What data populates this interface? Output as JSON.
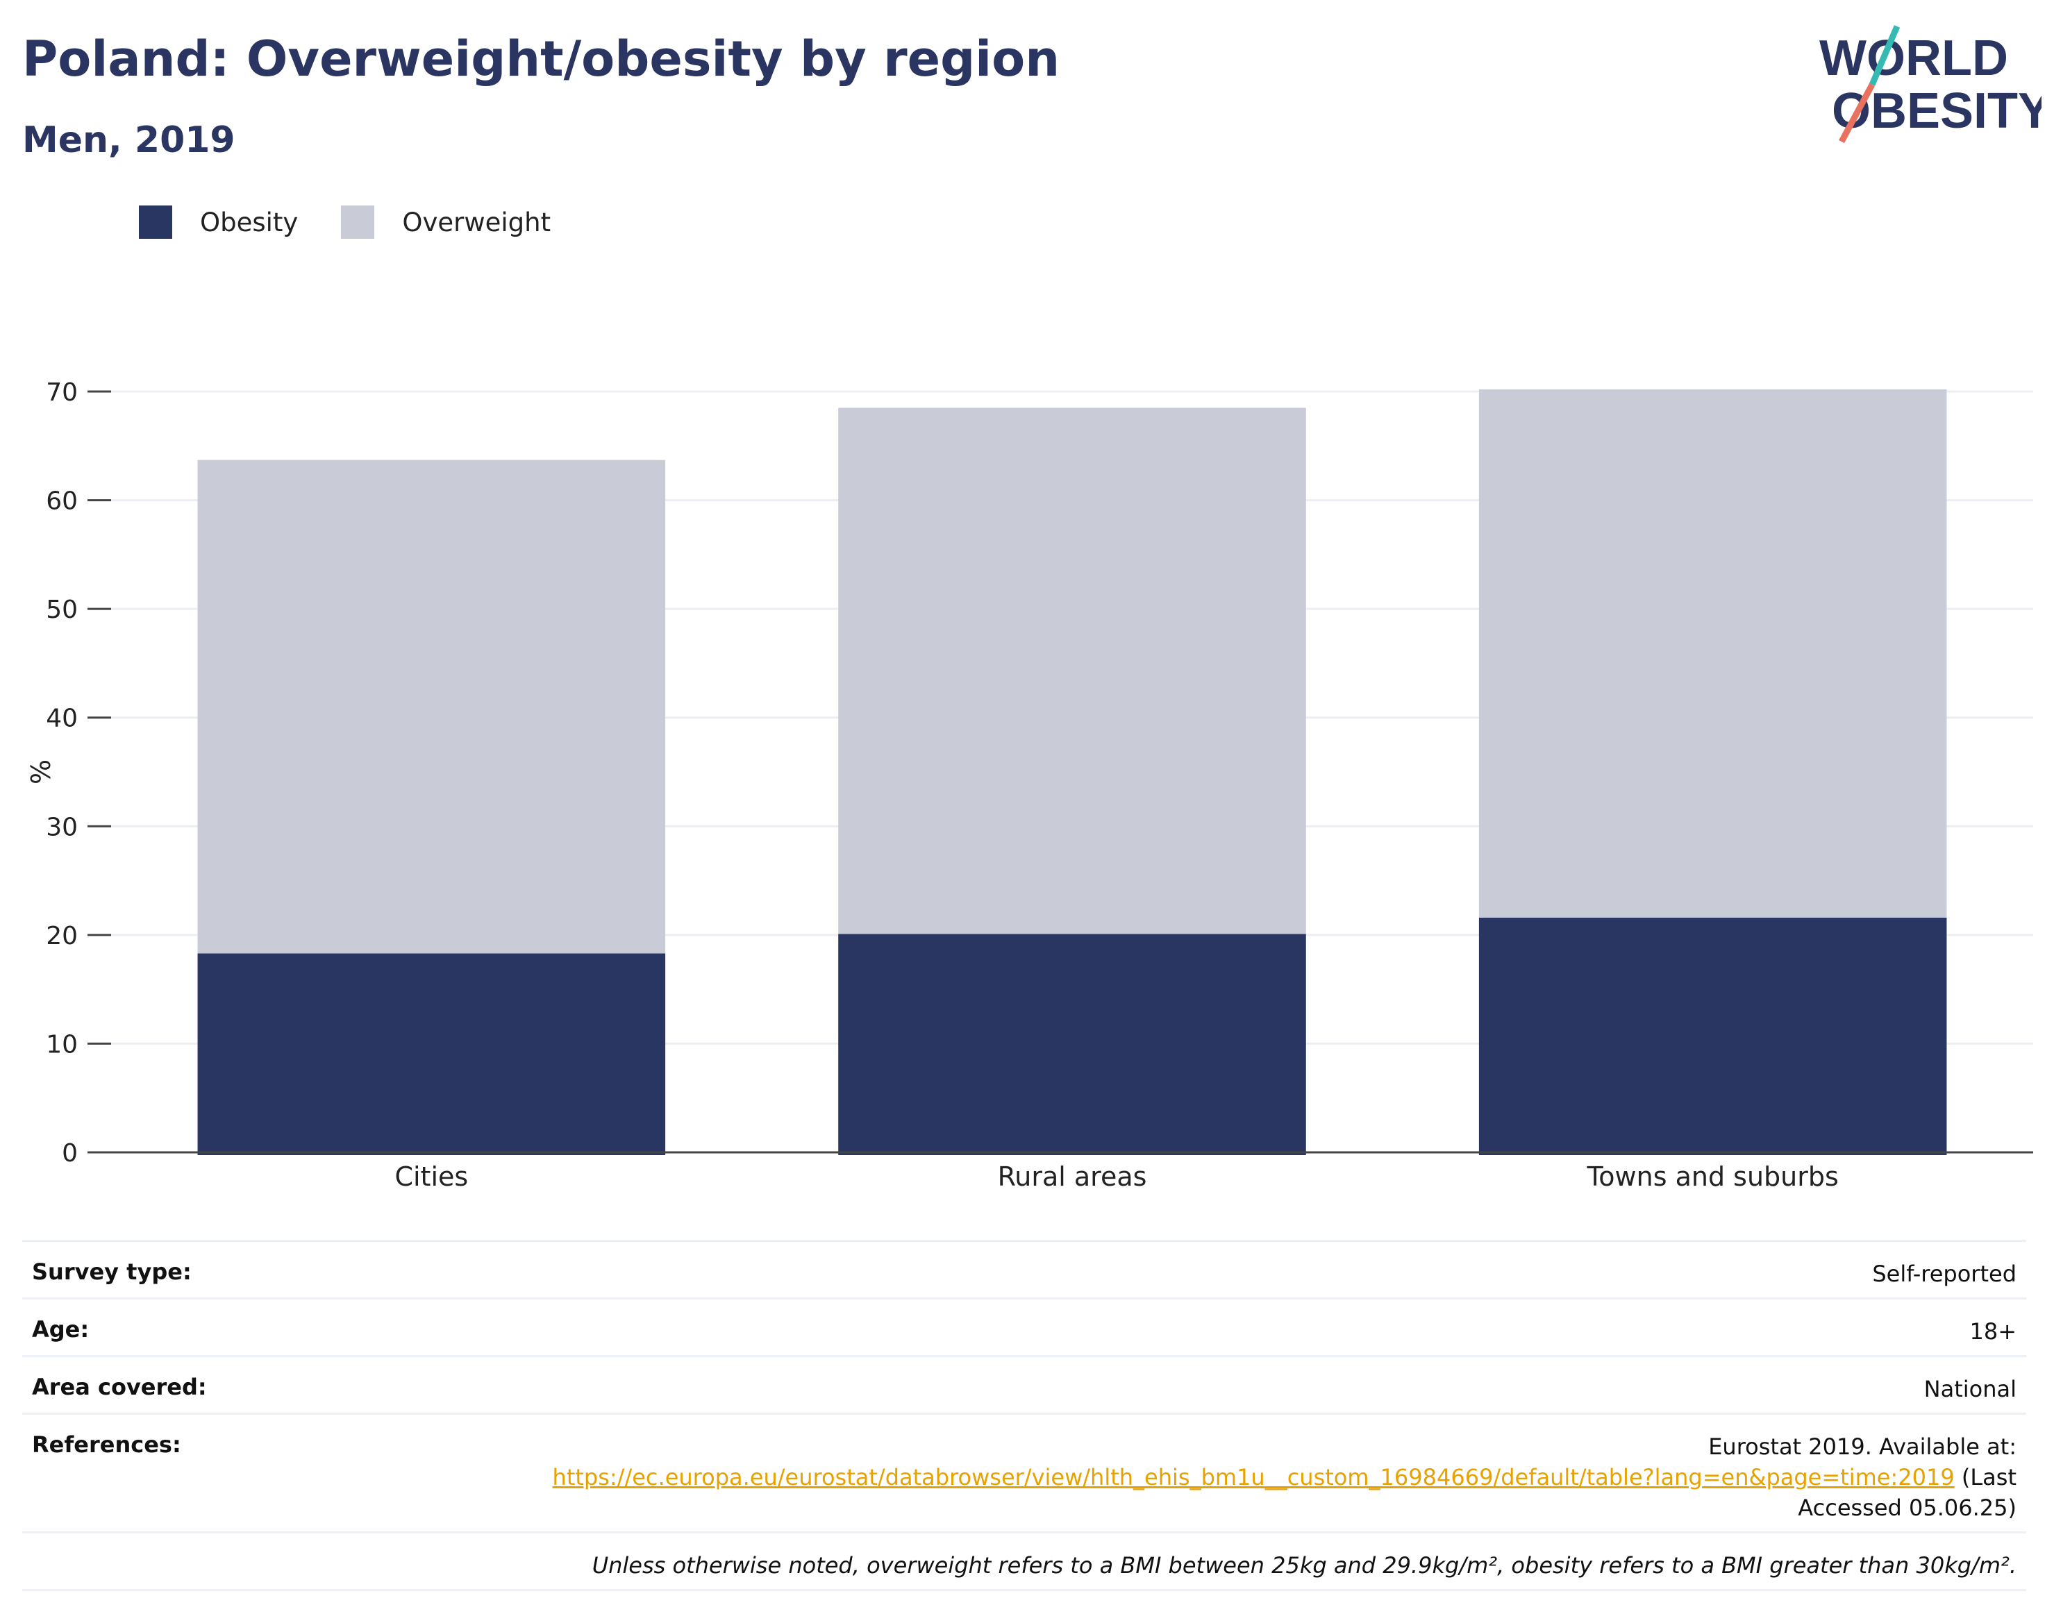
{
  "title": "Poland: Overweight/obesity by region",
  "subtitle": "Men, 2019",
  "logo": {
    "line1": "WORLD",
    "line2": "OBESITY"
  },
  "legend": [
    {
      "label": "Obesity",
      "color": "#2a3662"
    },
    {
      "label": "Overweight",
      "color": "#c9cbd6"
    }
  ],
  "chart_data": {
    "type": "bar",
    "stacked": true,
    "categories": [
      "Cities",
      "Rural areas",
      "Towns and suburbs"
    ],
    "series": [
      {
        "name": "Obesity",
        "color": "#2a3662",
        "values": [
          18.3,
          20.1,
          21.6
        ]
      },
      {
        "name": "Overweight",
        "color": "#c9cbd6",
        "values": [
          45.4,
          48.4,
          48.6
        ]
      }
    ],
    "ylabel": "%",
    "ylim": [
      0,
      70
    ],
    "yticks": [
      0,
      10,
      20,
      30,
      40,
      50,
      60,
      70
    ],
    "grid": true
  },
  "meta": {
    "survey_type": {
      "label": "Survey type:",
      "value": "Self-reported"
    },
    "age": {
      "label": "Age:",
      "value": "18+"
    },
    "area": {
      "label": "Area covered:",
      "value": "National"
    },
    "references": {
      "label": "References:",
      "prefix": "Eurostat 2019. Available at:",
      "link": "https://ec.europa.eu/eurostat/databrowser/view/hlth_ehis_bm1u__custom_16984669/default/table?lang=en&page=time:2019",
      "suffix_inline": "(Last",
      "suffix_line": "Accessed 05.06.25)"
    },
    "note": "Unless otherwise noted, overweight refers to a BMI between 25kg and 29.9kg/m², obesity refers to a BMI greater than 30kg/m²."
  }
}
